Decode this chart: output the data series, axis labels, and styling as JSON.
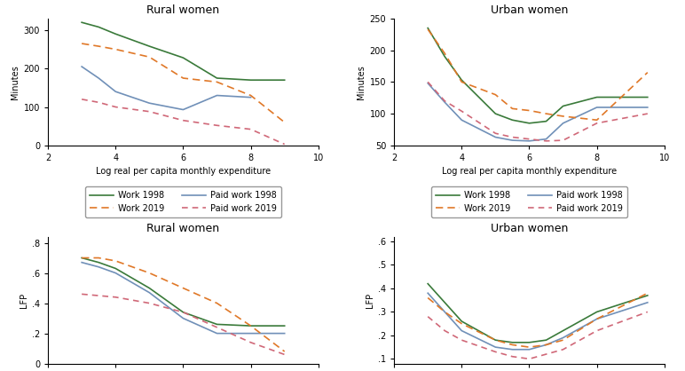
{
  "title_rural_top": "Rural women",
  "title_urban_top": "Urban women",
  "title_rural_bot": "Rural women",
  "title_urban_bot": "Urban women",
  "xlabel": "Log real per capita monthly expenditure",
  "ylabel_top": "Minutes",
  "ylabel_bot": "LFP",
  "colors": {
    "work1998": "#3a7a3a",
    "paid1998": "#7090b8",
    "work2019": "#e07828",
    "paid2019": "#d06878"
  },
  "rural_top": {
    "x_work1998": [
      3.0,
      3.5,
      4.0,
      5.0,
      6.0,
      7.0,
      8.0,
      9.0
    ],
    "y_work1998": [
      320,
      308,
      290,
      258,
      228,
      175,
      170,
      170
    ],
    "x_paid1998": [
      3.0,
      3.5,
      4.0,
      5.0,
      6.0,
      7.0,
      8.0
    ],
    "y_paid1998": [
      205,
      175,
      140,
      110,
      93,
      130,
      125
    ],
    "x_work2019": [
      3.0,
      3.5,
      4.0,
      5.0,
      6.0,
      7.0,
      8.0,
      9.0
    ],
    "y_work2019": [
      265,
      258,
      250,
      230,
      175,
      165,
      130,
      60
    ],
    "x_paid2019": [
      3.0,
      3.5,
      4.0,
      5.0,
      6.0,
      7.0,
      8.0,
      9.0
    ],
    "y_paid2019": [
      120,
      112,
      100,
      88,
      65,
      52,
      42,
      3
    ],
    "ylim": [
      0,
      330
    ],
    "yticks": [
      0,
      100,
      200,
      300
    ],
    "xlim": [
      2,
      10
    ],
    "xticks": [
      2,
      4,
      6,
      8,
      10
    ]
  },
  "urban_top": {
    "x_work1998": [
      3.0,
      3.5,
      4.0,
      5.0,
      5.5,
      6.0,
      6.5,
      7.0,
      8.0,
      9.5
    ],
    "y_work1998": [
      235,
      190,
      153,
      100,
      90,
      85,
      88,
      112,
      126,
      126
    ],
    "x_paid1998": [
      3.0,
      3.5,
      4.0,
      5.0,
      5.5,
      6.0,
      6.5,
      7.0,
      8.0,
      9.5
    ],
    "y_paid1998": [
      148,
      118,
      90,
      63,
      58,
      57,
      60,
      85,
      110,
      110
    ],
    "x_work2019": [
      3.0,
      3.5,
      4.0,
      5.0,
      5.5,
      6.0,
      6.5,
      7.0,
      8.0,
      9.5
    ],
    "y_work2019": [
      233,
      195,
      150,
      130,
      108,
      105,
      100,
      96,
      90,
      165
    ],
    "x_paid2019": [
      3.0,
      3.5,
      4.0,
      5.0,
      5.5,
      6.0,
      6.5,
      7.0,
      8.0,
      9.5
    ],
    "y_paid2019": [
      150,
      120,
      104,
      69,
      63,
      60,
      57,
      58,
      85,
      100
    ],
    "ylim": [
      50,
      250
    ],
    "yticks": [
      50,
      100,
      150,
      200,
      250
    ],
    "xlim": [
      2,
      10
    ],
    "xticks": [
      2,
      4,
      6,
      8,
      10
    ]
  },
  "rural_bot": {
    "x_work1998": [
      3.0,
      3.5,
      4.0,
      5.0,
      6.0,
      7.0,
      8.0,
      9.0
    ],
    "y_work1998": [
      0.7,
      0.67,
      0.63,
      0.5,
      0.34,
      0.26,
      0.25,
      0.25
    ],
    "x_paid1998": [
      3.0,
      3.5,
      4.0,
      5.0,
      6.0,
      7.0,
      8.0,
      9.0
    ],
    "y_paid1998": [
      0.67,
      0.64,
      0.6,
      0.47,
      0.3,
      0.2,
      0.2,
      0.2
    ],
    "x_work2019": [
      3.0,
      3.5,
      4.0,
      5.0,
      6.0,
      7.0,
      8.0,
      9.0
    ],
    "y_work2019": [
      0.7,
      0.7,
      0.68,
      0.6,
      0.5,
      0.4,
      0.25,
      0.08
    ],
    "x_paid2019": [
      3.0,
      3.5,
      4.0,
      5.0,
      6.0,
      7.0,
      8.0,
      9.0
    ],
    "y_paid2019": [
      0.46,
      0.45,
      0.44,
      0.4,
      0.34,
      0.24,
      0.14,
      0.06
    ],
    "ylim": [
      0,
      0.84
    ],
    "yticks": [
      0,
      0.2,
      0.4,
      0.6,
      0.8
    ],
    "ytick_labels": [
      "0",
      ".2",
      ".4",
      ".6",
      ".8"
    ],
    "xlim": [
      2,
      10
    ],
    "xticks": [
      2,
      4,
      6,
      8,
      10
    ]
  },
  "urban_bot": {
    "x_work1998": [
      3.0,
      3.5,
      4.0,
      5.0,
      5.5,
      6.0,
      6.5,
      7.0,
      8.0,
      9.5
    ],
    "y_work1998": [
      0.42,
      0.34,
      0.26,
      0.18,
      0.17,
      0.17,
      0.18,
      0.22,
      0.3,
      0.37
    ],
    "x_paid1998": [
      3.0,
      3.5,
      4.0,
      5.0,
      5.5,
      6.0,
      6.5,
      7.0,
      8.0,
      9.5
    ],
    "y_paid1998": [
      0.38,
      0.3,
      0.22,
      0.15,
      0.14,
      0.14,
      0.16,
      0.19,
      0.27,
      0.34
    ],
    "x_work2019": [
      3.0,
      3.5,
      4.0,
      5.0,
      5.5,
      6.0,
      6.5,
      7.0,
      8.0,
      9.5
    ],
    "y_work2019": [
      0.36,
      0.3,
      0.25,
      0.18,
      0.16,
      0.15,
      0.16,
      0.18,
      0.27,
      0.38
    ],
    "x_paid2019": [
      3.0,
      3.5,
      4.0,
      5.0,
      5.5,
      6.0,
      6.5,
      7.0,
      8.0,
      9.5
    ],
    "y_paid2019": [
      0.28,
      0.22,
      0.18,
      0.13,
      0.11,
      0.1,
      0.12,
      0.14,
      0.22,
      0.3
    ],
    "ylim": [
      0.08,
      0.62
    ],
    "yticks": [
      0.1,
      0.2,
      0.3,
      0.4,
      0.5,
      0.6
    ],
    "ytick_labels": [
      ".1",
      ".2",
      ".3",
      ".4",
      ".5",
      ".6"
    ],
    "xlim": [
      2,
      10
    ],
    "xticks": [
      2,
      4,
      6,
      8,
      10
    ]
  },
  "background_color": "#ffffff",
  "title_fontsize": 9,
  "label_fontsize": 7,
  "tick_fontsize": 7,
  "legend_fontsize": 7
}
